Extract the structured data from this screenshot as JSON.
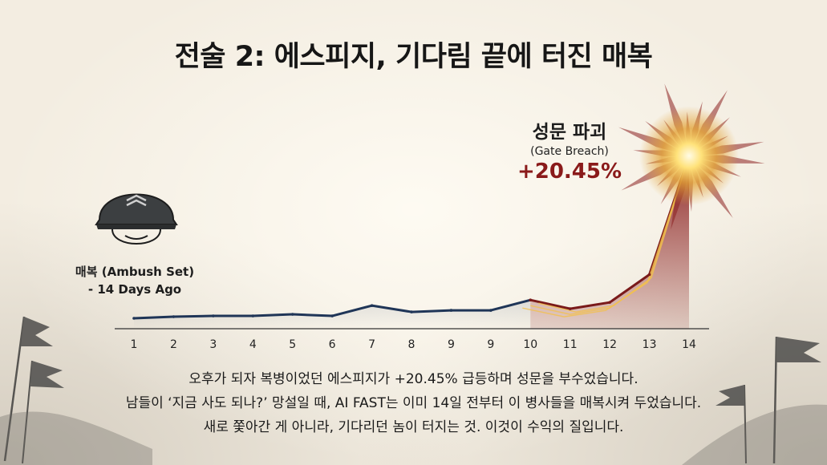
{
  "title": "전술 2: 에스피지, 기다림 끝에 터진 매복",
  "annotations": {
    "ambush_label": "매복 (Ambush Set)",
    "ambush_sub": "- 14 Days Ago",
    "breach_kr": "성문 파괴",
    "breach_en": "(Gate Breach)",
    "breach_value": "+20.45%"
  },
  "caption": [
    "오후가 되자 복병이었던 에스피지가 +20.45% 급등하며 성문을 부수었습니다.",
    "남들이 ‘지금 사도 되나?’ 망설일 때, AI FAST는 이미 14일 전부터 이 병사들을 매복시켜 두었습니다.",
    "새로 쫓아간 게 아니라, 기다리던 놈이 터지는 것. 이것이 수익의 질입니다."
  ],
  "colors": {
    "line_calm": "#1f3557",
    "line_surge": "#7a1a1a",
    "fill_surge": "#8a1f1f",
    "highlight": "#8a1a1a"
  },
  "chart_data": {
    "type": "line",
    "categories": [
      "1",
      "2",
      "3",
      "4",
      "5",
      "6",
      "7",
      "8",
      "9",
      "9",
      "10",
      "11",
      "12",
      "13",
      "14"
    ],
    "series": [
      {
        "values": [
          0.0,
          0.2,
          0.3,
          0.3,
          0.5,
          0.3,
          1.6,
          0.8,
          1.0,
          1.0,
          2.3,
          1.2,
          2.0,
          5.5,
          20.45
        ]
      }
    ],
    "ylim": [
      0,
      22
    ],
    "grid": false,
    "highlight_start_index": 10,
    "xlabel": "",
    "ylabel": ""
  }
}
